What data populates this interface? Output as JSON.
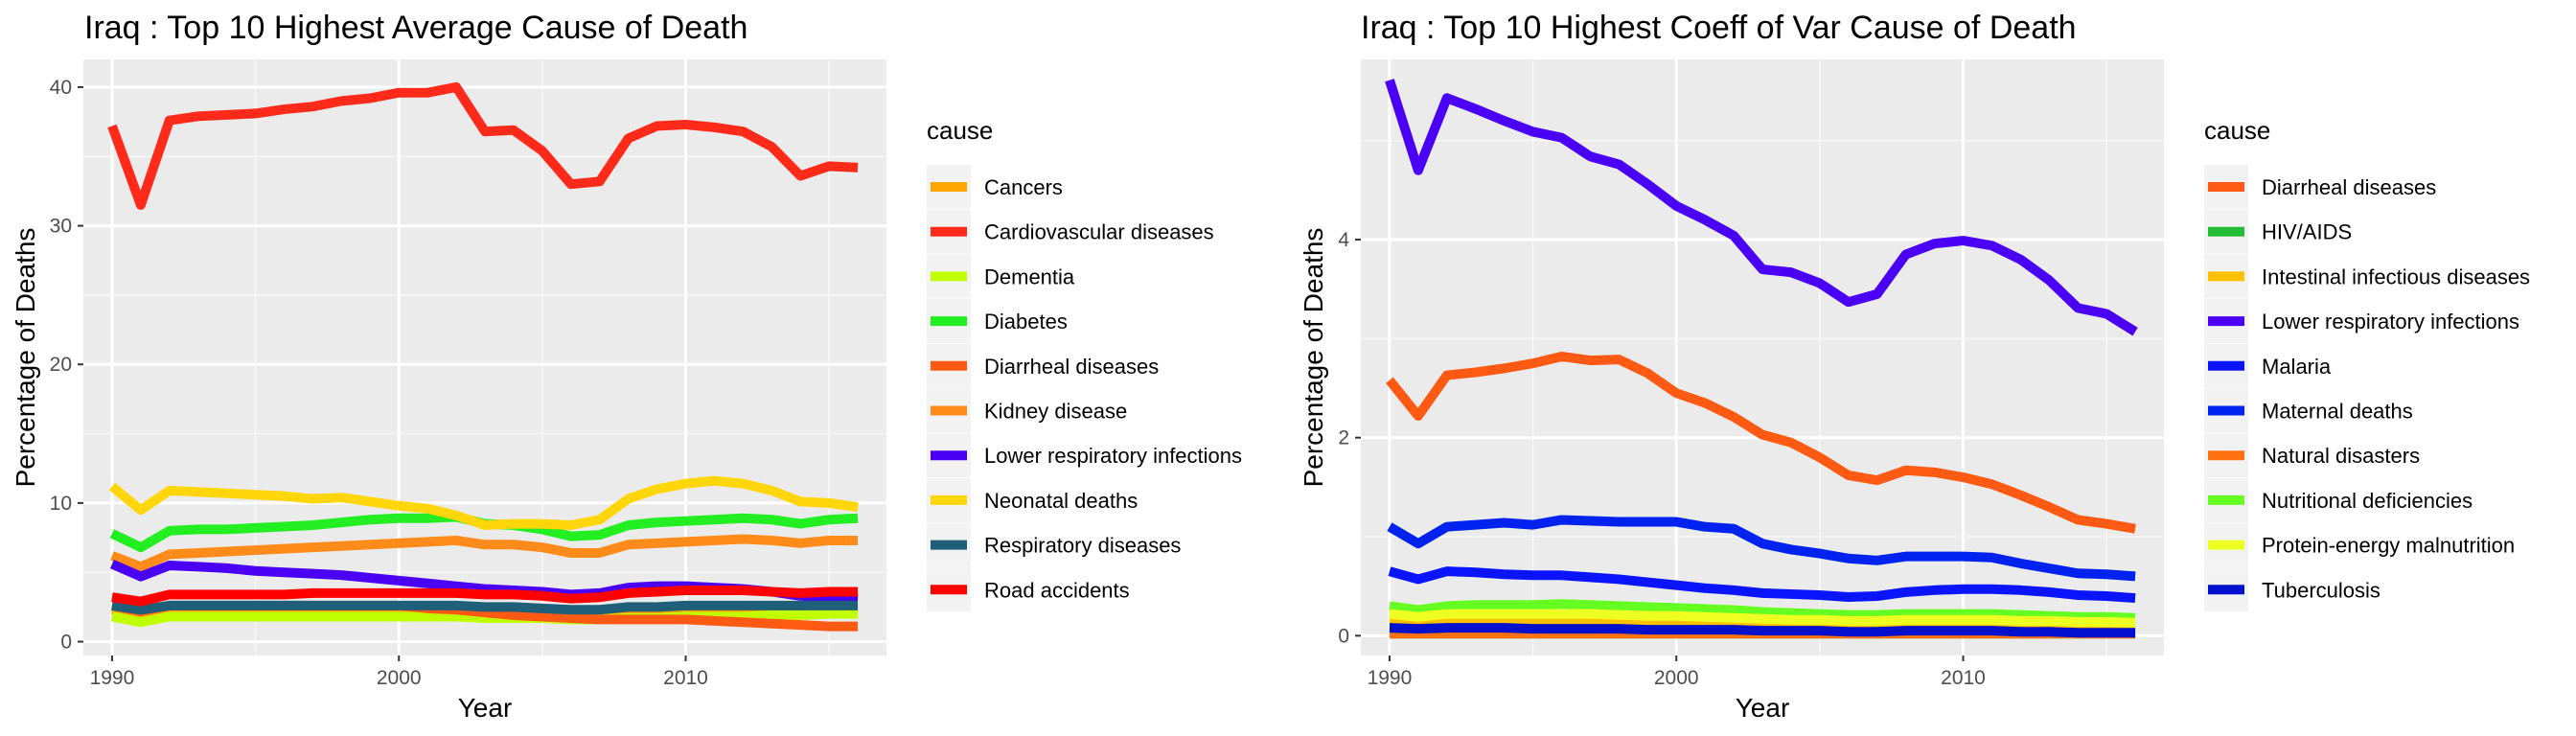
{
  "chart_data": [
    {
      "type": "line",
      "title": "Iraq : Top  10  Highest Average Cause of Death",
      "xlabel": "Year",
      "ylabel": "Percentage of Deaths",
      "xlim": [
        1989,
        2017
      ],
      "ylim": [
        -1,
        42
      ],
      "xticks": [
        1990,
        2000,
        2010
      ],
      "yticks": [
        0,
        10,
        20,
        30,
        40
      ],
      "grid": true,
      "legend_title": "cause",
      "legend_position": "right",
      "x": [
        1990,
        1991,
        1992,
        1993,
        1994,
        1995,
        1996,
        1997,
        1998,
        1999,
        2000,
        2001,
        2002,
        2003,
        2004,
        2005,
        2006,
        2007,
        2008,
        2009,
        2010,
        2011,
        2012,
        2013,
        2014,
        2015,
        2016
      ],
      "series": [
        {
          "name": "Cancers",
          "color": "#FFA500",
          "values": [
            2.3,
            1.9,
            2.3,
            2.3,
            2.3,
            2.3,
            2.3,
            2.3,
            2.3,
            2.3,
            2.3,
            2.2,
            2.1,
            2.0,
            1.9,
            1.9,
            1.8,
            1.8,
            1.9,
            1.9,
            2.0,
            2.0,
            2.1,
            2.1,
            2.2,
            2.2,
            2.2
          ]
        },
        {
          "name": "Cardiovascular diseases",
          "color": "#FF2A1A",
          "values": [
            37.2,
            31.5,
            37.6,
            37.9,
            38.0,
            38.1,
            38.4,
            38.6,
            39.0,
            39.2,
            39.6,
            39.6,
            40.0,
            36.8,
            36.9,
            35.4,
            33.0,
            33.2,
            36.3,
            37.2,
            37.3,
            37.1,
            36.8,
            35.7,
            33.6,
            34.3,
            34.2
          ]
        },
        {
          "name": "Dementia",
          "color": "#BFFF00",
          "values": [
            1.8,
            1.4,
            1.8,
            1.8,
            1.8,
            1.8,
            1.8,
            1.8,
            1.8,
            1.8,
            1.8,
            1.8,
            1.8,
            1.7,
            1.7,
            1.7,
            1.6,
            1.6,
            1.7,
            1.7,
            1.8,
            1.8,
            1.8,
            1.9,
            1.9,
            2.0,
            2.0
          ]
        },
        {
          "name": "Diabetes",
          "color": "#22EE22",
          "values": [
            7.8,
            6.8,
            8.0,
            8.1,
            8.1,
            8.2,
            8.3,
            8.4,
            8.6,
            8.8,
            8.9,
            8.9,
            9.0,
            8.5,
            8.4,
            8.1,
            7.6,
            7.7,
            8.4,
            8.6,
            8.7,
            8.8,
            8.9,
            8.8,
            8.5,
            8.8,
            8.9
          ]
        },
        {
          "name": "Diarrheal diseases",
          "color": "#FF5A14",
          "values": [
            2.6,
            2.2,
            2.6,
            2.6,
            2.6,
            2.6,
            2.6,
            2.6,
            2.6,
            2.6,
            2.6,
            2.4,
            2.3,
            2.1,
            1.9,
            1.8,
            1.7,
            1.6,
            1.6,
            1.6,
            1.6,
            1.5,
            1.4,
            1.3,
            1.2,
            1.1,
            1.1
          ]
        },
        {
          "name": "Kidney disease",
          "color": "#FF8C1A",
          "values": [
            6.2,
            5.4,
            6.3,
            6.4,
            6.5,
            6.6,
            6.7,
            6.8,
            6.9,
            7.0,
            7.1,
            7.2,
            7.3,
            7.0,
            7.0,
            6.8,
            6.4,
            6.4,
            7.0,
            7.1,
            7.2,
            7.3,
            7.4,
            7.3,
            7.1,
            7.3,
            7.3
          ]
        },
        {
          "name": "Lower respiratory infections",
          "color": "#4A00F5",
          "values": [
            5.6,
            4.7,
            5.5,
            5.4,
            5.3,
            5.1,
            5.0,
            4.9,
            4.8,
            4.6,
            4.4,
            4.2,
            4.0,
            3.8,
            3.7,
            3.6,
            3.4,
            3.5,
            3.9,
            4.0,
            4.0,
            3.9,
            3.8,
            3.6,
            3.3,
            3.2,
            3.1
          ]
        },
        {
          "name": "Neonatal deaths",
          "color": "#FFD60A",
          "values": [
            11.2,
            9.5,
            10.9,
            10.8,
            10.7,
            10.6,
            10.5,
            10.3,
            10.4,
            10.1,
            9.8,
            9.6,
            9.1,
            8.4,
            8.5,
            8.5,
            8.4,
            8.8,
            10.3,
            11.0,
            11.4,
            11.6,
            11.4,
            10.9,
            10.1,
            10.0,
            9.7
          ]
        },
        {
          "name": "Respiratory diseases",
          "color": "#1F5F7A",
          "values": [
            2.6,
            2.3,
            2.6,
            2.6,
            2.6,
            2.6,
            2.6,
            2.6,
            2.6,
            2.6,
            2.6,
            2.6,
            2.6,
            2.5,
            2.5,
            2.4,
            2.3,
            2.3,
            2.5,
            2.5,
            2.6,
            2.6,
            2.6,
            2.6,
            2.6,
            2.6,
            2.6
          ]
        },
        {
          "name": "Road accidents",
          "color": "#FF0000",
          "values": [
            3.2,
            2.9,
            3.4,
            3.4,
            3.4,
            3.4,
            3.4,
            3.5,
            3.5,
            3.5,
            3.5,
            3.5,
            3.5,
            3.4,
            3.4,
            3.3,
            3.1,
            3.2,
            3.5,
            3.6,
            3.7,
            3.7,
            3.7,
            3.6,
            3.5,
            3.6,
            3.6
          ]
        }
      ]
    },
    {
      "type": "line",
      "title": "Iraq : Top  10  Highest Coeff of Var Cause of Death",
      "xlabel": "Year",
      "ylabel": "Percentage of Deaths",
      "xlim": [
        1989,
        2017
      ],
      "ylim": [
        -0.2,
        5.82
      ],
      "xticks": [
        1990,
        2000,
        2010
      ],
      "yticks": [
        0,
        2,
        4
      ],
      "grid": true,
      "legend_title": "cause",
      "legend_position": "right",
      "x": [
        1990,
        1991,
        1992,
        1993,
        1994,
        1995,
        1996,
        1997,
        1998,
        1999,
        2000,
        2001,
        2002,
        2003,
        2004,
        2005,
        2006,
        2007,
        2008,
        2009,
        2010,
        2011,
        2012,
        2013,
        2014,
        2015,
        2016
      ],
      "series": [
        {
          "name": "Diarrheal diseases",
          "color": "#FF5A14",
          "values": [
            2.58,
            2.22,
            2.63,
            2.66,
            2.7,
            2.75,
            2.82,
            2.78,
            2.79,
            2.65,
            2.45,
            2.35,
            2.21,
            2.03,
            1.95,
            1.8,
            1.62,
            1.57,
            1.67,
            1.65,
            1.6,
            1.53,
            1.42,
            1.3,
            1.17,
            1.13,
            1.08
          ]
        },
        {
          "name": "HIV/AIDS",
          "color": "#22BB33",
          "values": [
            0.02,
            0.02,
            0.02,
            0.02,
            0.02,
            0.02,
            0.02,
            0.02,
            0.02,
            0.02,
            0.02,
            0.02,
            0.02,
            0.02,
            0.02,
            0.02,
            0.02,
            0.02,
            0.02,
            0.02,
            0.02,
            0.02,
            0.02,
            0.02,
            0.02,
            0.02,
            0.02
          ]
        },
        {
          "name": "Intestinal infectious diseases",
          "color": "#FFC000",
          "values": [
            0.15,
            0.13,
            0.15,
            0.15,
            0.15,
            0.15,
            0.15,
            0.15,
            0.15,
            0.14,
            0.14,
            0.13,
            0.13,
            0.12,
            0.12,
            0.11,
            0.11,
            0.11,
            0.11,
            0.11,
            0.11,
            0.11,
            0.11,
            0.1,
            0.1,
            0.1,
            0.1
          ]
        },
        {
          "name": "Lower respiratory infections",
          "color": "#4A00F5",
          "values": [
            5.61,
            4.7,
            5.43,
            5.32,
            5.2,
            5.09,
            5.03,
            4.84,
            4.76,
            4.56,
            4.34,
            4.2,
            4.04,
            3.7,
            3.67,
            3.56,
            3.37,
            3.45,
            3.85,
            3.96,
            3.99,
            3.94,
            3.8,
            3.59,
            3.31,
            3.25,
            3.07
          ]
        },
        {
          "name": "Malaria",
          "color": "#0A14FF",
          "values": [
            0.65,
            0.57,
            0.65,
            0.64,
            0.62,
            0.61,
            0.61,
            0.59,
            0.57,
            0.54,
            0.51,
            0.48,
            0.46,
            0.43,
            0.42,
            0.41,
            0.39,
            0.4,
            0.44,
            0.46,
            0.47,
            0.47,
            0.46,
            0.44,
            0.41,
            0.4,
            0.38
          ]
        },
        {
          "name": "Maternal deaths",
          "color": "#0022EE",
          "values": [
            1.1,
            0.93,
            1.1,
            1.12,
            1.14,
            1.12,
            1.17,
            1.16,
            1.15,
            1.15,
            1.15,
            1.1,
            1.08,
            0.93,
            0.87,
            0.83,
            0.78,
            0.76,
            0.8,
            0.8,
            0.8,
            0.79,
            0.73,
            0.68,
            0.63,
            0.62,
            0.6
          ]
        },
        {
          "name": "Natural disasters",
          "color": "#FF7010",
          "values": [
            0.02,
            0.02,
            0.02,
            0.02,
            0.02,
            0.02,
            0.02,
            0.02,
            0.02,
            0.02,
            0.02,
            0.02,
            0.02,
            0.02,
            0.02,
            0.02,
            0.02,
            0.02,
            0.02,
            0.02,
            0.02,
            0.02,
            0.02,
            0.02,
            0.02,
            0.02,
            0.02
          ]
        },
        {
          "name": "Nutritional deficiencies",
          "color": "#66FF22",
          "values": [
            0.3,
            0.26,
            0.3,
            0.31,
            0.31,
            0.31,
            0.32,
            0.31,
            0.3,
            0.29,
            0.28,
            0.27,
            0.26,
            0.24,
            0.23,
            0.22,
            0.21,
            0.21,
            0.22,
            0.22,
            0.22,
            0.22,
            0.21,
            0.2,
            0.19,
            0.19,
            0.18
          ]
        },
        {
          "name": "Protein-energy malnutrition",
          "color": "#EEFF22",
          "values": [
            0.22,
            0.19,
            0.22,
            0.22,
            0.22,
            0.22,
            0.22,
            0.22,
            0.21,
            0.2,
            0.2,
            0.19,
            0.18,
            0.17,
            0.16,
            0.16,
            0.15,
            0.15,
            0.16,
            0.16,
            0.16,
            0.16,
            0.15,
            0.15,
            0.14,
            0.14,
            0.13
          ]
        },
        {
          "name": "Tuberculosis",
          "color": "#0010CC",
          "values": [
            0.08,
            0.07,
            0.08,
            0.08,
            0.08,
            0.07,
            0.07,
            0.07,
            0.07,
            0.06,
            0.06,
            0.06,
            0.06,
            0.05,
            0.05,
            0.05,
            0.04,
            0.04,
            0.05,
            0.05,
            0.05,
            0.05,
            0.04,
            0.04,
            0.03,
            0.03,
            0.03
          ]
        }
      ]
    }
  ]
}
